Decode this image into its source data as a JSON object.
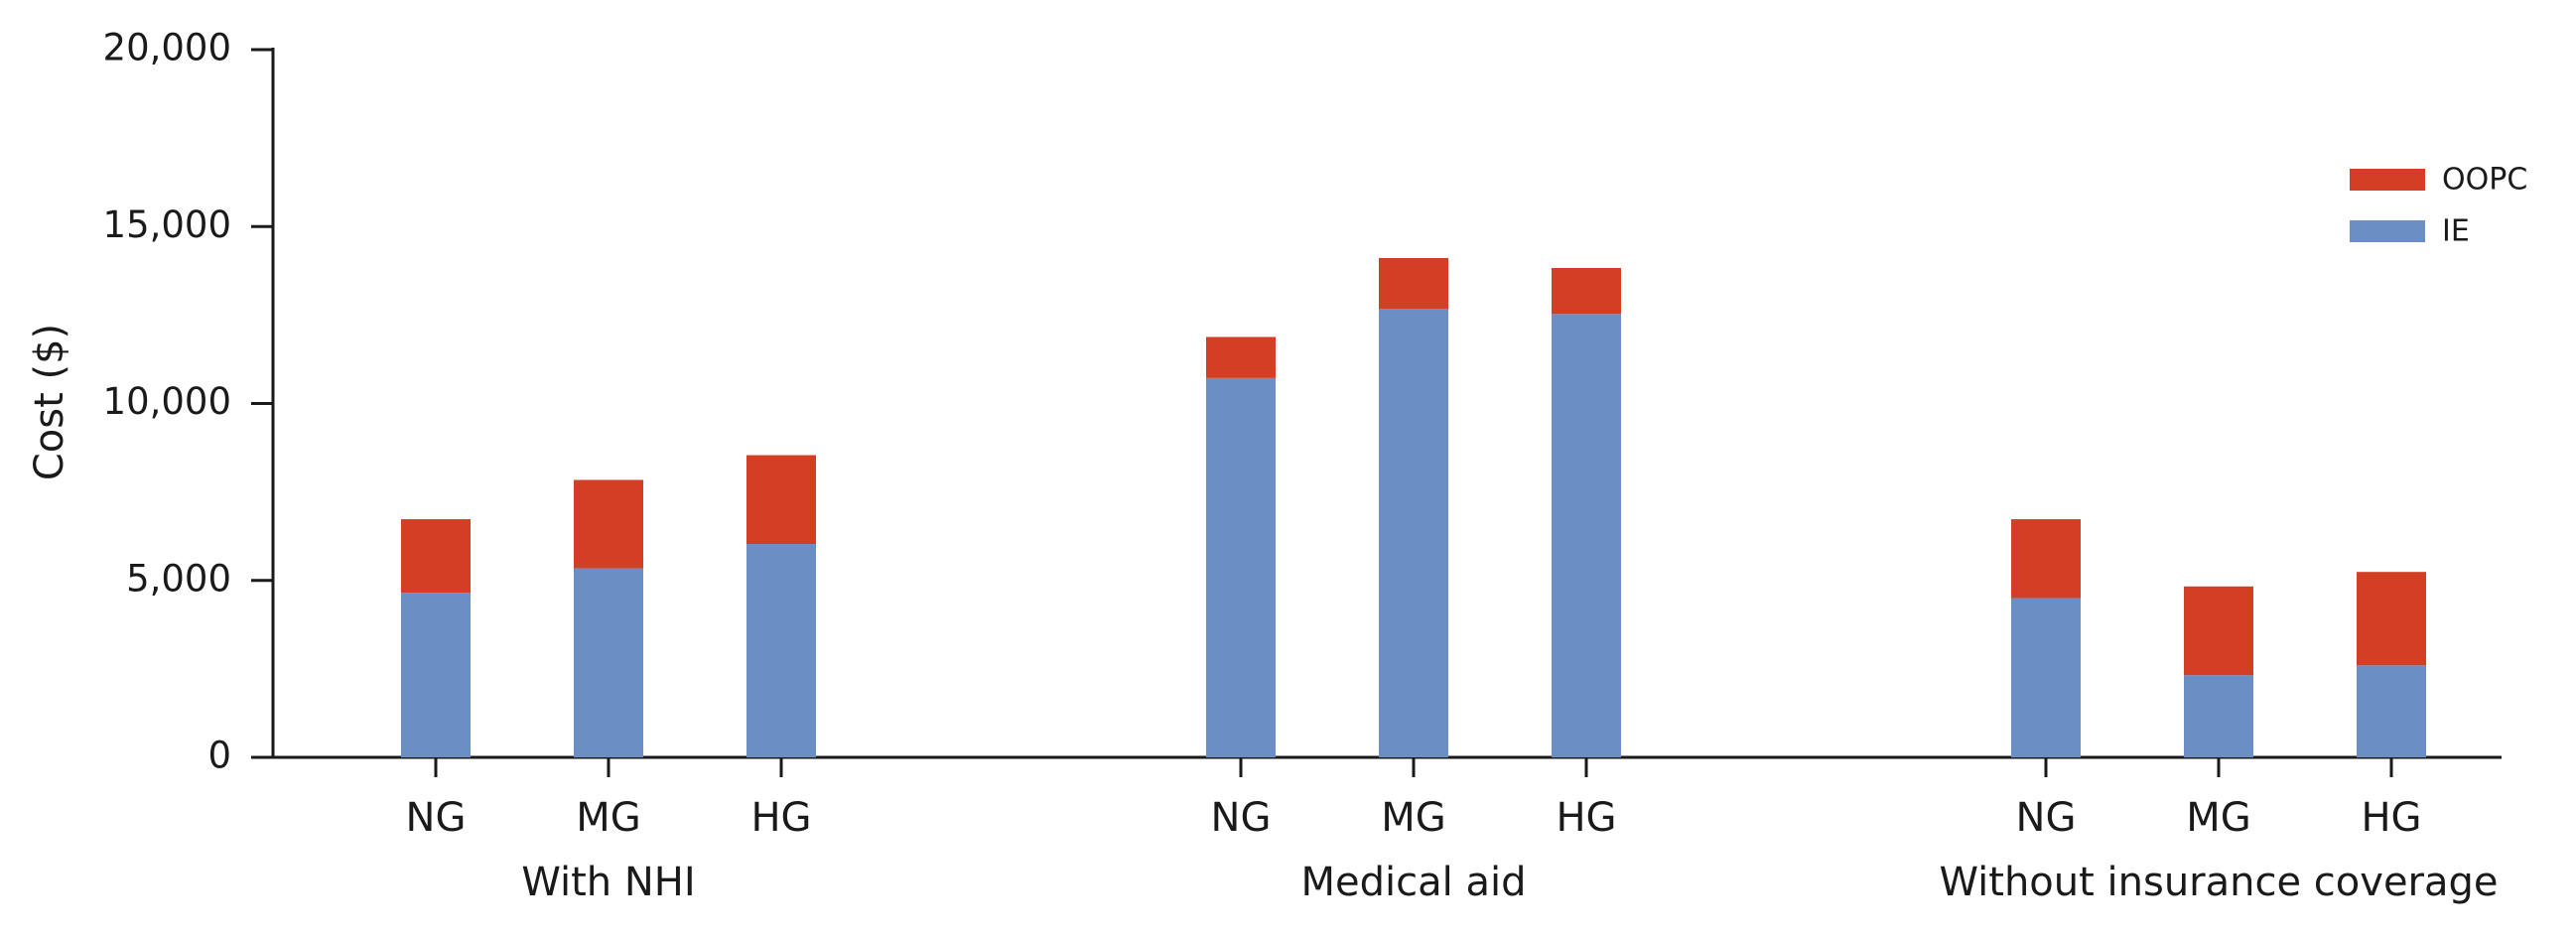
{
  "chart_data": {
    "type": "stacked_bar",
    "y_label": "Cost ($)",
    "categories": [
      "NG",
      "MG",
      "HG",
      "NG",
      "MG",
      "HG",
      "NG",
      "MG",
      "HG"
    ],
    "groups": [
      "With NHI",
      "Medical aid",
      "Without insurance coverage"
    ],
    "series": [
      {
        "name": "IE",
        "color": "#6b8fc4",
        "values": [
          4650,
          5340,
          6030,
          10720,
          12670,
          12530,
          4500,
          2320,
          2600
        ]
      },
      {
        "name": "OOPC",
        "color": "#d33f25",
        "values": [
          2080,
          2500,
          2510,
          1160,
          1440,
          1300,
          2230,
          2510,
          2640
        ]
      }
    ],
    "ylim": [
      0,
      20000
    ],
    "yticks": [
      0,
      {
        "value": 5000,
        "label": "5,000"
      },
      {
        "value": 10000,
        "label": "10,000"
      },
      {
        "value": 15000,
        "label": "15,000"
      },
      {
        "value": 20000,
        "label": "20,000"
      }
    ],
    "legend": "top-right"
  }
}
